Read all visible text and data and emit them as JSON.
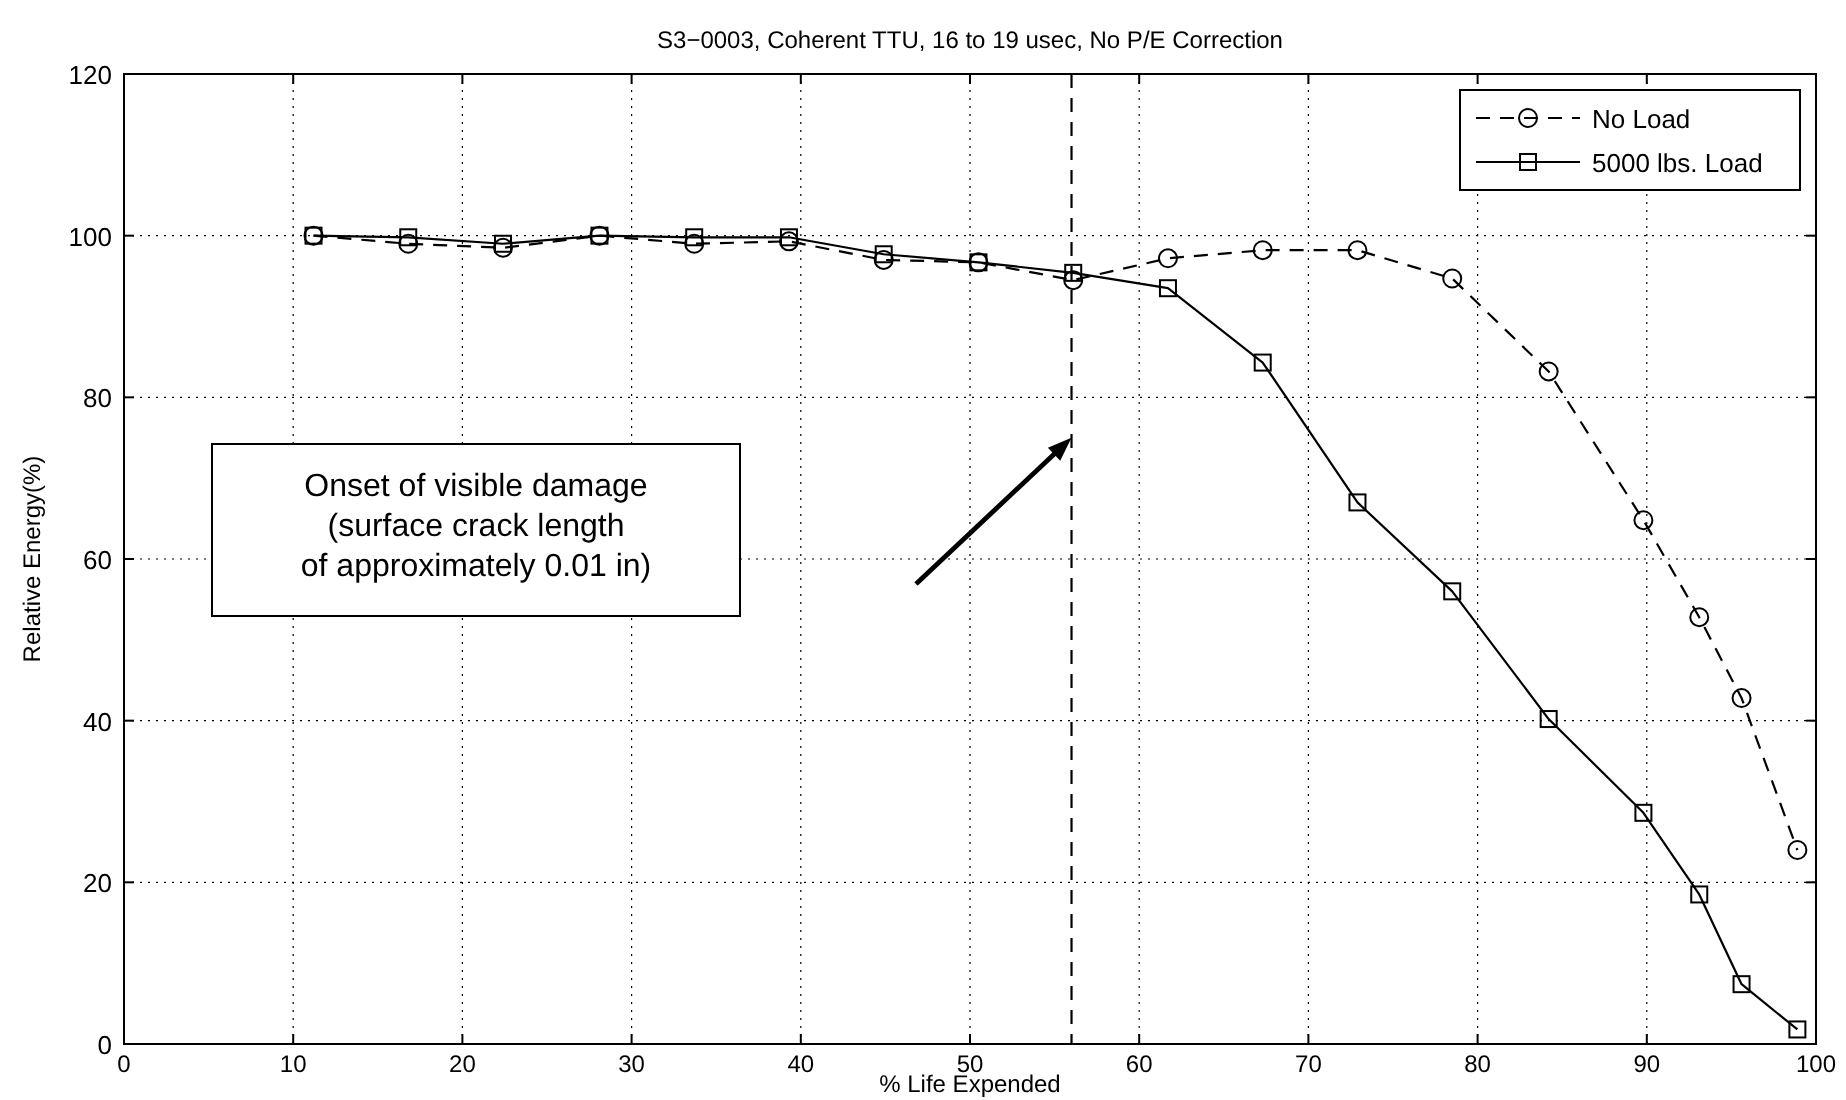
{
  "chart_data": {
    "type": "line",
    "title": "S3−0003, Coherent TTU, 16 to 19 usec, No P/E Correction",
    "xlabel": "% Life Expended",
    "ylabel": "Relative Energy(%)",
    "x": [
      11.2,
      16.8,
      22.4,
      28.1,
      33.7,
      39.3,
      44.9,
      50.5,
      56.1,
      61.7,
      67.3,
      72.9,
      78.5,
      84.2,
      89.8,
      93.1,
      95.6,
      98.9
    ],
    "series": [
      {
        "name": "No Load",
        "color": "#000000",
        "marker": "circle",
        "line_style": "dashed",
        "values": [
          100,
          99,
          98.5,
          100,
          99,
          99.3,
          97,
          96.7,
          94.5,
          97.2,
          98.2,
          98.2,
          94.7,
          83.2,
          64.8,
          52.8,
          42.8,
          24
        ]
      },
      {
        "name": "5000 lbs. Load",
        "color": "#000000",
        "marker": "square",
        "line_style": "solid",
        "values": [
          100,
          99.8,
          99,
          100,
          99.8,
          99.8,
          97.7,
          96.7,
          95.4,
          93.5,
          84.3,
          67,
          56,
          40.2,
          28.6,
          18.5,
          7.4,
          1.8
        ]
      }
    ],
    "xlim": [
      0,
      100
    ],
    "xticks": [
      0,
      10,
      20,
      30,
      40,
      50,
      60,
      70,
      80,
      90,
      100
    ],
    "ylim": [
      0,
      120
    ],
    "yticks": [
      0,
      20,
      40,
      60,
      80,
      100,
      120
    ],
    "grid": true,
    "legend": "top right",
    "ref_lines": [
      {
        "axis": "x",
        "value": 56,
        "line_style": "dashed",
        "color": "#000000"
      }
    ],
    "annotations": [
      "Onset of visible damage\n(surface crack length\nof approximately 0.01 in)"
    ]
  }
}
